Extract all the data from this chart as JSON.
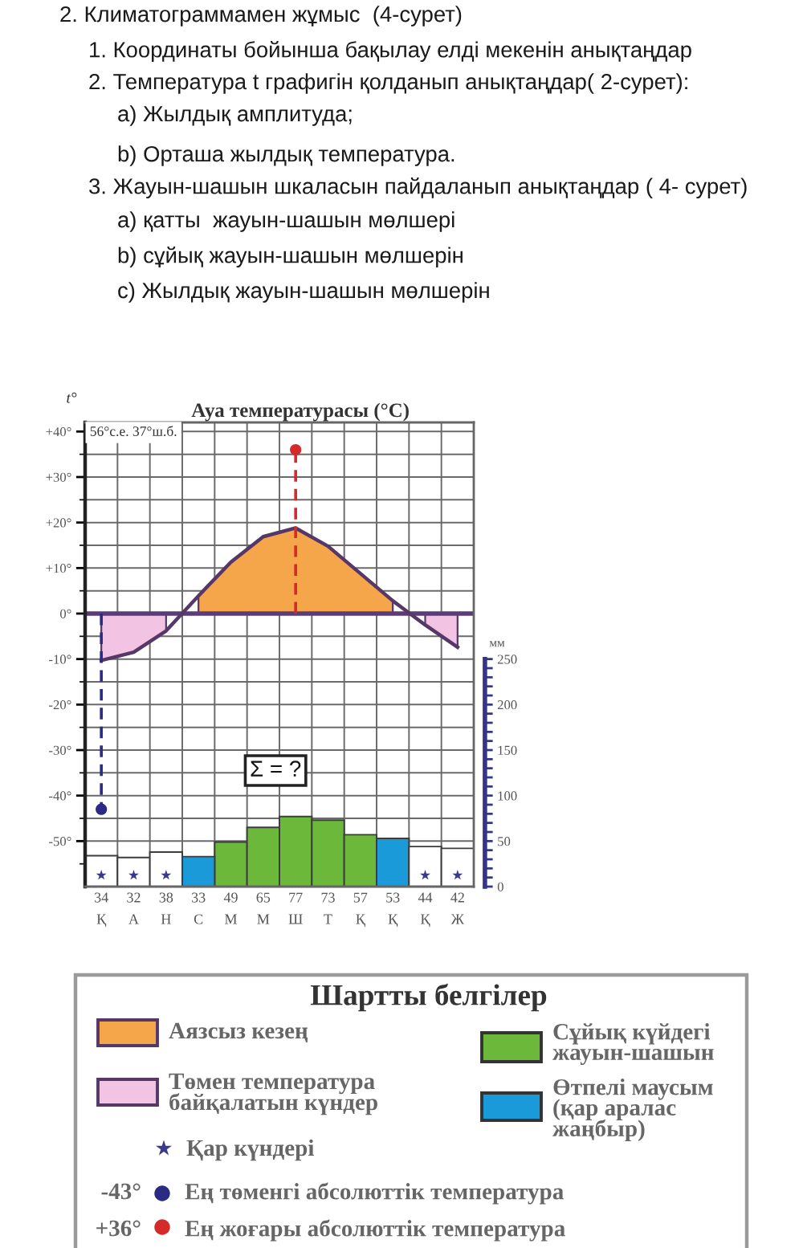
{
  "chart_data": {
    "type": "bar",
    "title": "Ауа температурасы (°C)",
    "ylabel": "t°",
    "y2label": "мм",
    "legend_title": "Шартты белгілер",
    "annotations": [
      "2. Климатограммамен жұмыс  (4-сурет)",
      "1. Координаты бойынша бақылау елді мекенін анықтаңдар",
      "2. Температура t графигін қолданып анықтаңдар( 2-сурет):",
      "a) Жылдық амплитуда;",
      "b) Орташа жылдық температура.",
      "3. Жауын-шашын шкаласын пайдаланып анықтаңдар ( 4- сурет)",
      "a) қатты  жауын-шашын мөлшері",
      "b) сұйық жауын-шашын мөлшерін",
      "c) Жылдық жауын-шашын мөлшерін",
      "56°с.е. 37°ш.б.",
      "Σ = ?",
      "-43°",
      "+36°"
    ],
    "categories": [
      "Қ",
      "А",
      "Н",
      "С",
      "М",
      "М",
      "Ш",
      "Т",
      "Қ",
      "Қ",
      "Қ",
      "Ж"
    ],
    "ylim": [
      -60,
      42
    ],
    "yticks": [
      {
        "value": 40,
        "label": "+40°"
      },
      {
        "value": 35,
        "label": null
      },
      {
        "value": 30,
        "label": "+30°"
      },
      {
        "value": 25,
        "label": null
      },
      {
        "value": 20,
        "label": "+20°"
      },
      {
        "value": 15,
        "label": null
      },
      {
        "value": 10,
        "label": "+10°"
      },
      {
        "value": 5,
        "label": null
      },
      {
        "value": 0,
        "label": "0°"
      },
      {
        "value": -5,
        "label": null
      },
      {
        "value": -10,
        "label": "-10°"
      },
      {
        "value": -15,
        "label": null
      },
      {
        "value": -20,
        "label": "-20°"
      },
      {
        "value": -25,
        "label": null
      },
      {
        "value": -30,
        "label": "-30°"
      },
      {
        "value": -35,
        "label": null
      },
      {
        "value": -40,
        "label": "-40°"
      },
      {
        "value": -45,
        "label": null
      },
      {
        "value": -50,
        "label": "-50°"
      },
      {
        "value": -55,
        "label": null
      }
    ],
    "y2lim": [
      0,
      510
    ],
    "y2ticks": [
      0,
      {
        "value": 10,
        "label": null
      },
      {
        "value": 20,
        "label": null
      },
      {
        "value": 30,
        "label": null
      },
      {
        "value": 40,
        "label": null
      },
      50,
      {
        "value": 60,
        "label": null
      },
      {
        "value": 70,
        "label": null
      },
      {
        "value": 80,
        "label": null
      },
      {
        "value": 90,
        "label": null
      },
      100,
      {
        "value": 110,
        "label": null
      },
      {
        "value": 120,
        "label": null
      },
      {
        "value": 130,
        "label": null
      },
      {
        "value": 140,
        "label": null
      },
      150,
      {
        "value": 160,
        "label": null
      },
      {
        "value": 170,
        "label": null
      },
      {
        "value": 180,
        "label": null
      },
      {
        "value": 190,
        "label": null
      },
      200,
      {
        "value": 210,
        "label": null
      },
      {
        "value": 220,
        "label": null
      },
      {
        "value": 230,
        "label": null
      },
      {
        "value": 240,
        "label": null
      },
      250
    ],
    "grid": true,
    "legend": "bottom",
    "ref_lines": [
      {
        "axis": "y",
        "value": 0,
        "color": "#5b3c78"
      }
    ],
    "series": [
      {
        "type": "area",
        "name": "Аязсыз кезең",
        "color": "#f5a54a",
        "values": [
          null,
          null,
          null,
          3.9,
          11.3,
          16.9,
          18.8,
          14.8,
          8.8,
          2.8,
          null,
          null
        ]
      },
      {
        "type": "area",
        "name": "Төмен температура\nбайқалатын күндер",
        "color": "#f3c3e3",
        "values": [
          -10.3,
          -8.5,
          -3.8,
          null,
          null,
          null,
          null,
          null,
          null,
          null,
          -2.5,
          -7.4
        ]
      },
      {
        "type": "line",
        "color": "#553868",
        "values": [
          -10.3,
          -8.5,
          -3.8,
          3.9,
          11.3,
          16.9,
          18.8,
          14.8,
          8.8,
          2.8,
          -2.5,
          -7.4
        ]
      },
      {
        "axis": "y2",
        "name": "Сұйық күйдегі\nжауын-шашын",
        "color": "#6cb83a",
        "values": [
          null,
          null,
          null,
          null,
          49,
          65,
          77,
          73,
          57,
          null,
          null,
          null
        ],
        "value_labels": [
          null,
          null,
          null,
          null,
          "49",
          "65",
          "77",
          "73",
          "57",
          null,
          null,
          null
        ]
      },
      {
        "axis": "y2",
        "name": "Өтпелі маусым\n(қар аралас\nжаңбыр)",
        "color": "#1a9ad8",
        "values": [
          null,
          null,
          null,
          33,
          null,
          null,
          null,
          null,
          null,
          53,
          null,
          null
        ],
        "value_labels": [
          null,
          null,
          null,
          "33",
          null,
          null,
          null,
          null,
          null,
          "53",
          null,
          null
        ]
      },
      {
        "axis": "y2",
        "color": "#ffffff",
        "values": [
          34,
          32,
          38,
          null,
          null,
          null,
          null,
          null,
          null,
          null,
          44,
          42
        ],
        "value_labels": [
          "34",
          "32",
          "38",
          null,
          null,
          null,
          null,
          null,
          null,
          null,
          "44",
          "42"
        ]
      },
      {
        "type": "scatter",
        "name": "Қар күндері",
        "color": "#3a3a8c",
        "marker": "star",
        "values": [
          -57.5,
          -57.5,
          -57.5,
          null,
          null,
          null,
          null,
          null,
          null,
          null,
          -57.5,
          -57.5
        ]
      },
      {
        "type": "lollipop",
        "name": "Ең төменгі абсолюттік температура",
        "color": "#2b2b86",
        "marker": "circle",
        "line_style": "dashed",
        "values": [
          -43,
          null,
          null,
          null,
          null,
          null,
          null,
          null,
          null,
          null,
          null,
          null
        ]
      },
      {
        "type": "lollipop",
        "name": "Ең жоғары абсолюттік температура",
        "color": "#d42a2a",
        "marker": "circle",
        "line_style": "dashed",
        "values": [
          null,
          null,
          null,
          null,
          null,
          null,
          36,
          null,
          null,
          null,
          null,
          null
        ]
      }
    ]
  }
}
